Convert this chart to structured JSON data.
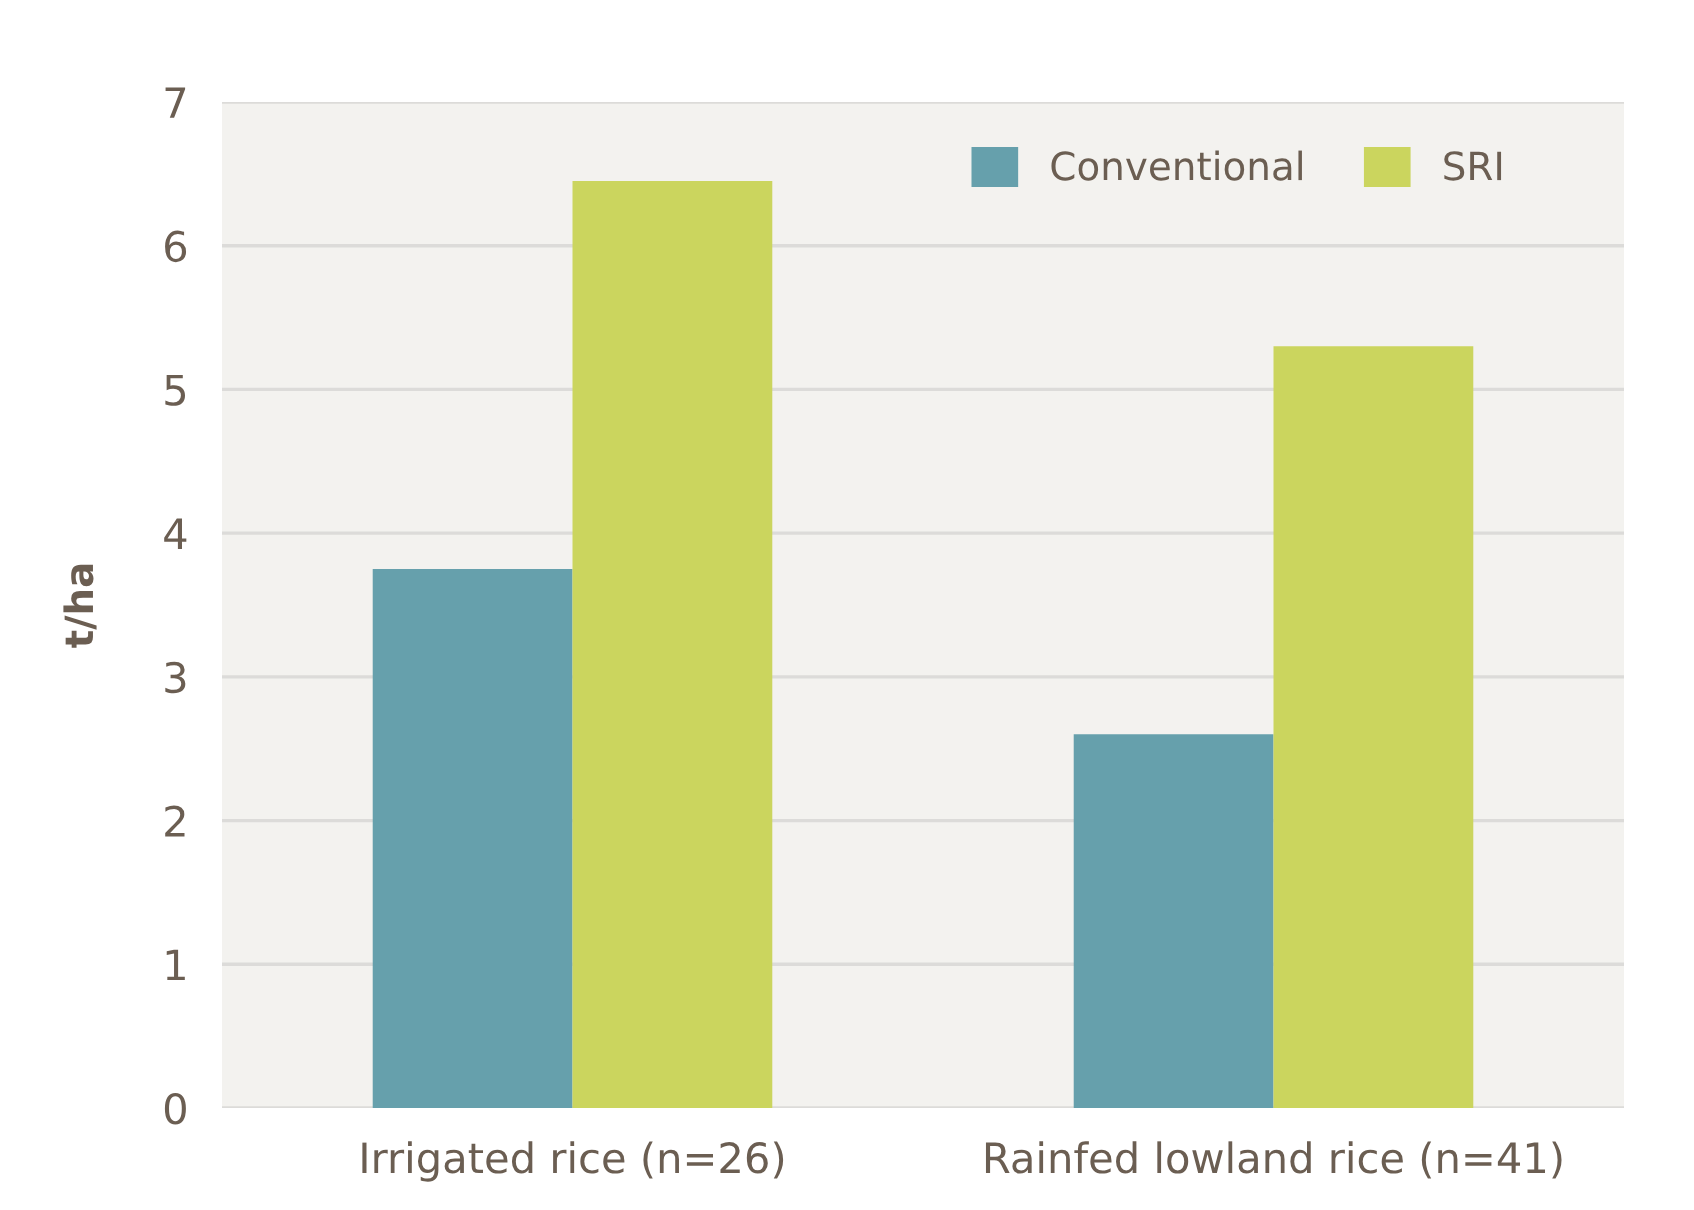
{
  "chart_data": {
    "type": "bar",
    "ylabel": "t/ha",
    "categories": [
      "Irrigated rice (n=26)",
      "Rainfed lowland rice (n=41)"
    ],
    "series": [
      {
        "name": "Conventional",
        "color": "#66a0ac",
        "values": [
          3.75,
          2.6
        ]
      },
      {
        "name": "SRI",
        "color": "#cbd55e",
        "values": [
          6.45,
          5.3
        ]
      }
    ],
    "ylim": [
      0,
      7
    ],
    "yticks": [
      0,
      1,
      2,
      3,
      4,
      5,
      6,
      7
    ],
    "grid": "y",
    "legend": "top right"
  }
}
